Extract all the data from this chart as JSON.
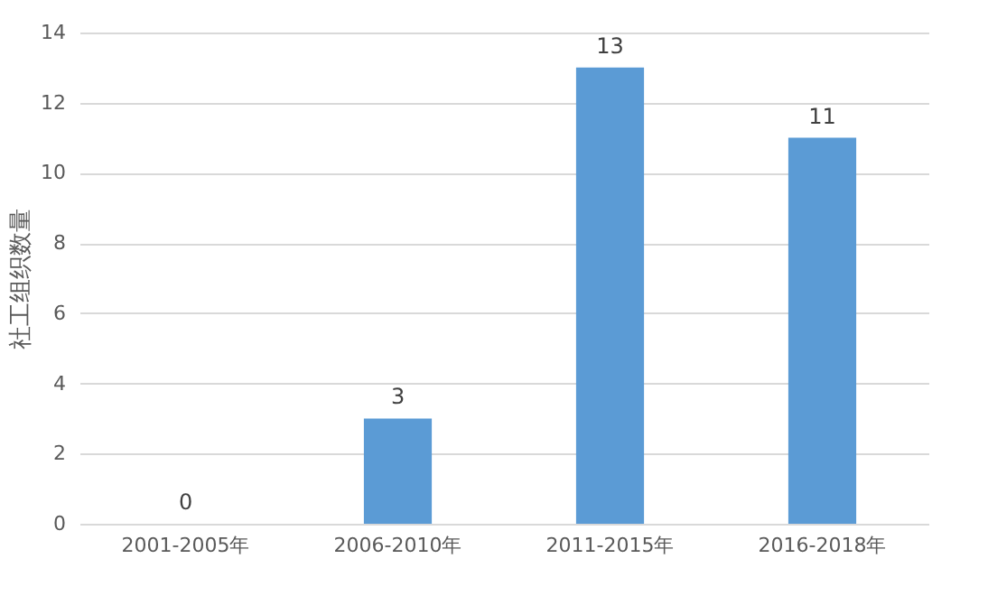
{
  "chart_data": {
    "type": "bar",
    "ylabel": "社工组织数量",
    "categories": [
      "2001-2005年",
      "2006-2010年",
      "2011-2015年",
      "2016-2018年"
    ],
    "values": [
      0,
      3,
      13,
      11
    ],
    "color": "#5b9bd5",
    "ylim": [
      0,
      14
    ],
    "yticks": [
      0,
      2,
      4,
      6,
      8,
      10,
      12,
      14
    ],
    "grid": "y",
    "data_labels": true
  }
}
